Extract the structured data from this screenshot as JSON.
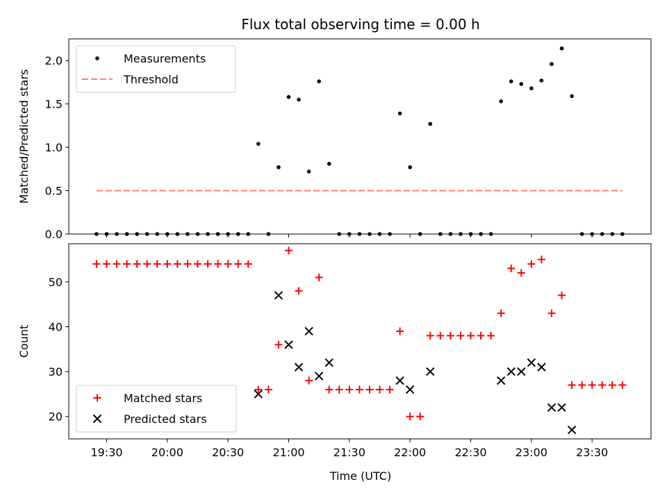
{
  "chart_data": {
    "type": "scatter",
    "title": "Flux total observing time = 0.00 h",
    "xlabel": "Time (UTC)",
    "x_ticks": [
      "19:30",
      "20:00",
      "20:30",
      "21:00",
      "21:30",
      "22:00",
      "22:30",
      "23:00",
      "23:30"
    ],
    "panels": [
      {
        "name": "ratio",
        "ylabel": "Matched/Predicted stars",
        "ylim": [
          0,
          2.25
        ],
        "y_ticks": [
          "0.0",
          "0.5",
          "1.0",
          "1.5",
          "2.0"
        ],
        "legend_position": "top-left",
        "series": [
          {
            "name": "Measurements",
            "marker": "dot",
            "color": "#000000",
            "x": [
              "19:25",
              "19:30",
              "19:35",
              "19:40",
              "19:45",
              "19:50",
              "19:55",
              "20:00",
              "20:05",
              "20:10",
              "20:15",
              "20:20",
              "20:25",
              "20:30",
              "20:35",
              "20:40",
              "20:45",
              "20:50",
              "20:55",
              "21:00",
              "21:05",
              "21:10",
              "21:15",
              "21:20",
              "21:25",
              "21:30",
              "21:35",
              "21:40",
              "21:45",
              "21:50",
              "21:55",
              "22:00",
              "22:05",
              "22:10",
              "22:15",
              "22:20",
              "22:25",
              "22:30",
              "22:35",
              "22:40",
              "22:45",
              "22:50",
              "22:55",
              "23:00",
              "23:05",
              "23:10",
              "23:15",
              "23:20",
              "23:25",
              "23:30",
              "23:35",
              "23:40",
              "23:45"
            ],
            "y": [
              0,
              0,
              0,
              0,
              0,
              0,
              0,
              0,
              0,
              0,
              0,
              0,
              0,
              0,
              0,
              0,
              1.04,
              0,
              0.77,
              1.58,
              1.55,
              0.72,
              1.76,
              0.81,
              0,
              0,
              0,
              0,
              0,
              0,
              1.39,
              0.77,
              0,
              1.27,
              0,
              0,
              0,
              0,
              0,
              0,
              1.53,
              1.76,
              1.73,
              1.68,
              1.77,
              1.96,
              2.14,
              1.59,
              0,
              0,
              0,
              0,
              0
            ]
          },
          {
            "name": "Threshold",
            "line": "dashed",
            "color": "#ff7a7a",
            "x": [
              "19:25",
              "23:45"
            ],
            "y": [
              0.5,
              0.5
            ]
          }
        ]
      },
      {
        "name": "counts",
        "ylabel": "Count",
        "ylim": [
          15,
          58.5
        ],
        "y_ticks": [
          "20",
          "30",
          "40",
          "50"
        ],
        "legend_position": "bottom-left",
        "series": [
          {
            "name": "Matched stars",
            "marker": "plus",
            "color": "#ff0000",
            "x": [
              "19:25",
              "19:30",
              "19:35",
              "19:40",
              "19:45",
              "19:50",
              "19:55",
              "20:00",
              "20:05",
              "20:10",
              "20:15",
              "20:20",
              "20:25",
              "20:30",
              "20:35",
              "20:40",
              "20:45",
              "20:50",
              "20:55",
              "21:00",
              "21:05",
              "21:10",
              "21:15",
              "21:20",
              "21:25",
              "21:30",
              "21:35",
              "21:40",
              "21:45",
              "21:50",
              "21:55",
              "22:00",
              "22:05",
              "22:10",
              "22:15",
              "22:20",
              "22:25",
              "22:30",
              "22:35",
              "22:40",
              "22:45",
              "22:50",
              "22:55",
              "23:00",
              "23:05",
              "23:10",
              "23:15",
              "23:20",
              "23:25",
              "23:30",
              "23:35",
              "23:40",
              "23:45"
            ],
            "y": [
              54,
              54,
              54,
              54,
              54,
              54,
              54,
              54,
              54,
              54,
              54,
              54,
              54,
              54,
              54,
              54,
              26,
              26,
              36,
              57,
              48,
              28,
              51,
              26,
              26,
              26,
              26,
              26,
              26,
              26,
              39,
              20,
              20,
              38,
              38,
              38,
              38,
              38,
              38,
              38,
              43,
              53,
              52,
              54,
              55,
              43,
              47,
              27,
              27,
              27,
              27,
              27,
              27
            ]
          },
          {
            "name": "Predicted stars",
            "marker": "x",
            "color": "#000000",
            "x": [
              "20:45",
              "20:55",
              "21:00",
              "21:05",
              "21:10",
              "21:15",
              "21:20",
              "21:55",
              "22:00",
              "22:10",
              "22:45",
              "22:50",
              "22:55",
              "23:00",
              "23:05",
              "23:10",
              "23:15",
              "23:20"
            ],
            "y": [
              25,
              47,
              36,
              31,
              39,
              29,
              32,
              28,
              26,
              30,
              28,
              30,
              30,
              32,
              31,
              22,
              22,
              17
            ]
          }
        ]
      }
    ]
  }
}
